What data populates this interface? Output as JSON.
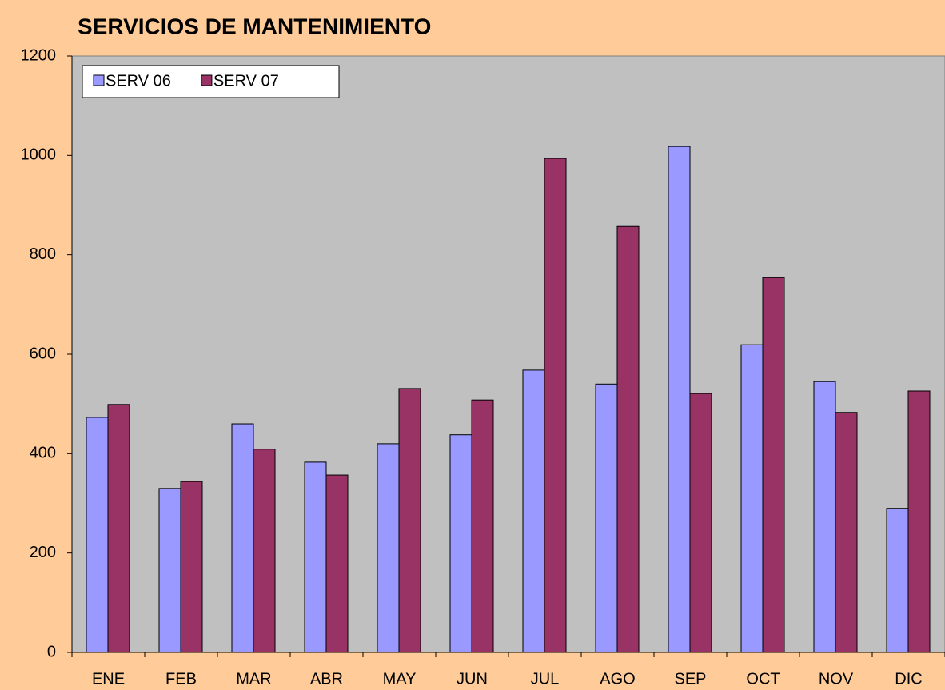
{
  "chart_data": {
    "type": "bar",
    "title": "SERVICIOS DE MANTENIMIENTO",
    "categories": [
      "ENE",
      "FEB",
      "MAR",
      "ABR",
      "MAY",
      "JUN",
      "JUL",
      "AGO",
      "SEP",
      "OCT",
      "NOV",
      "DIC"
    ],
    "series": [
      {
        "name": "SERV 06",
        "color": "#9999ff",
        "values": [
          473,
          330,
          460,
          383,
          420,
          438,
          568,
          540,
          1018,
          619,
          545,
          290
        ]
      },
      {
        "name": "SERV 07",
        "color": "#993366",
        "values": [
          499,
          344,
          409,
          357,
          531,
          508,
          994,
          857,
          521,
          754,
          483,
          526
        ]
      }
    ],
    "ylim": [
      0,
      1200
    ],
    "yticks": [
      0,
      200,
      400,
      600,
      800,
      1000,
      1200
    ],
    "grid": false,
    "legend": "top-left"
  }
}
